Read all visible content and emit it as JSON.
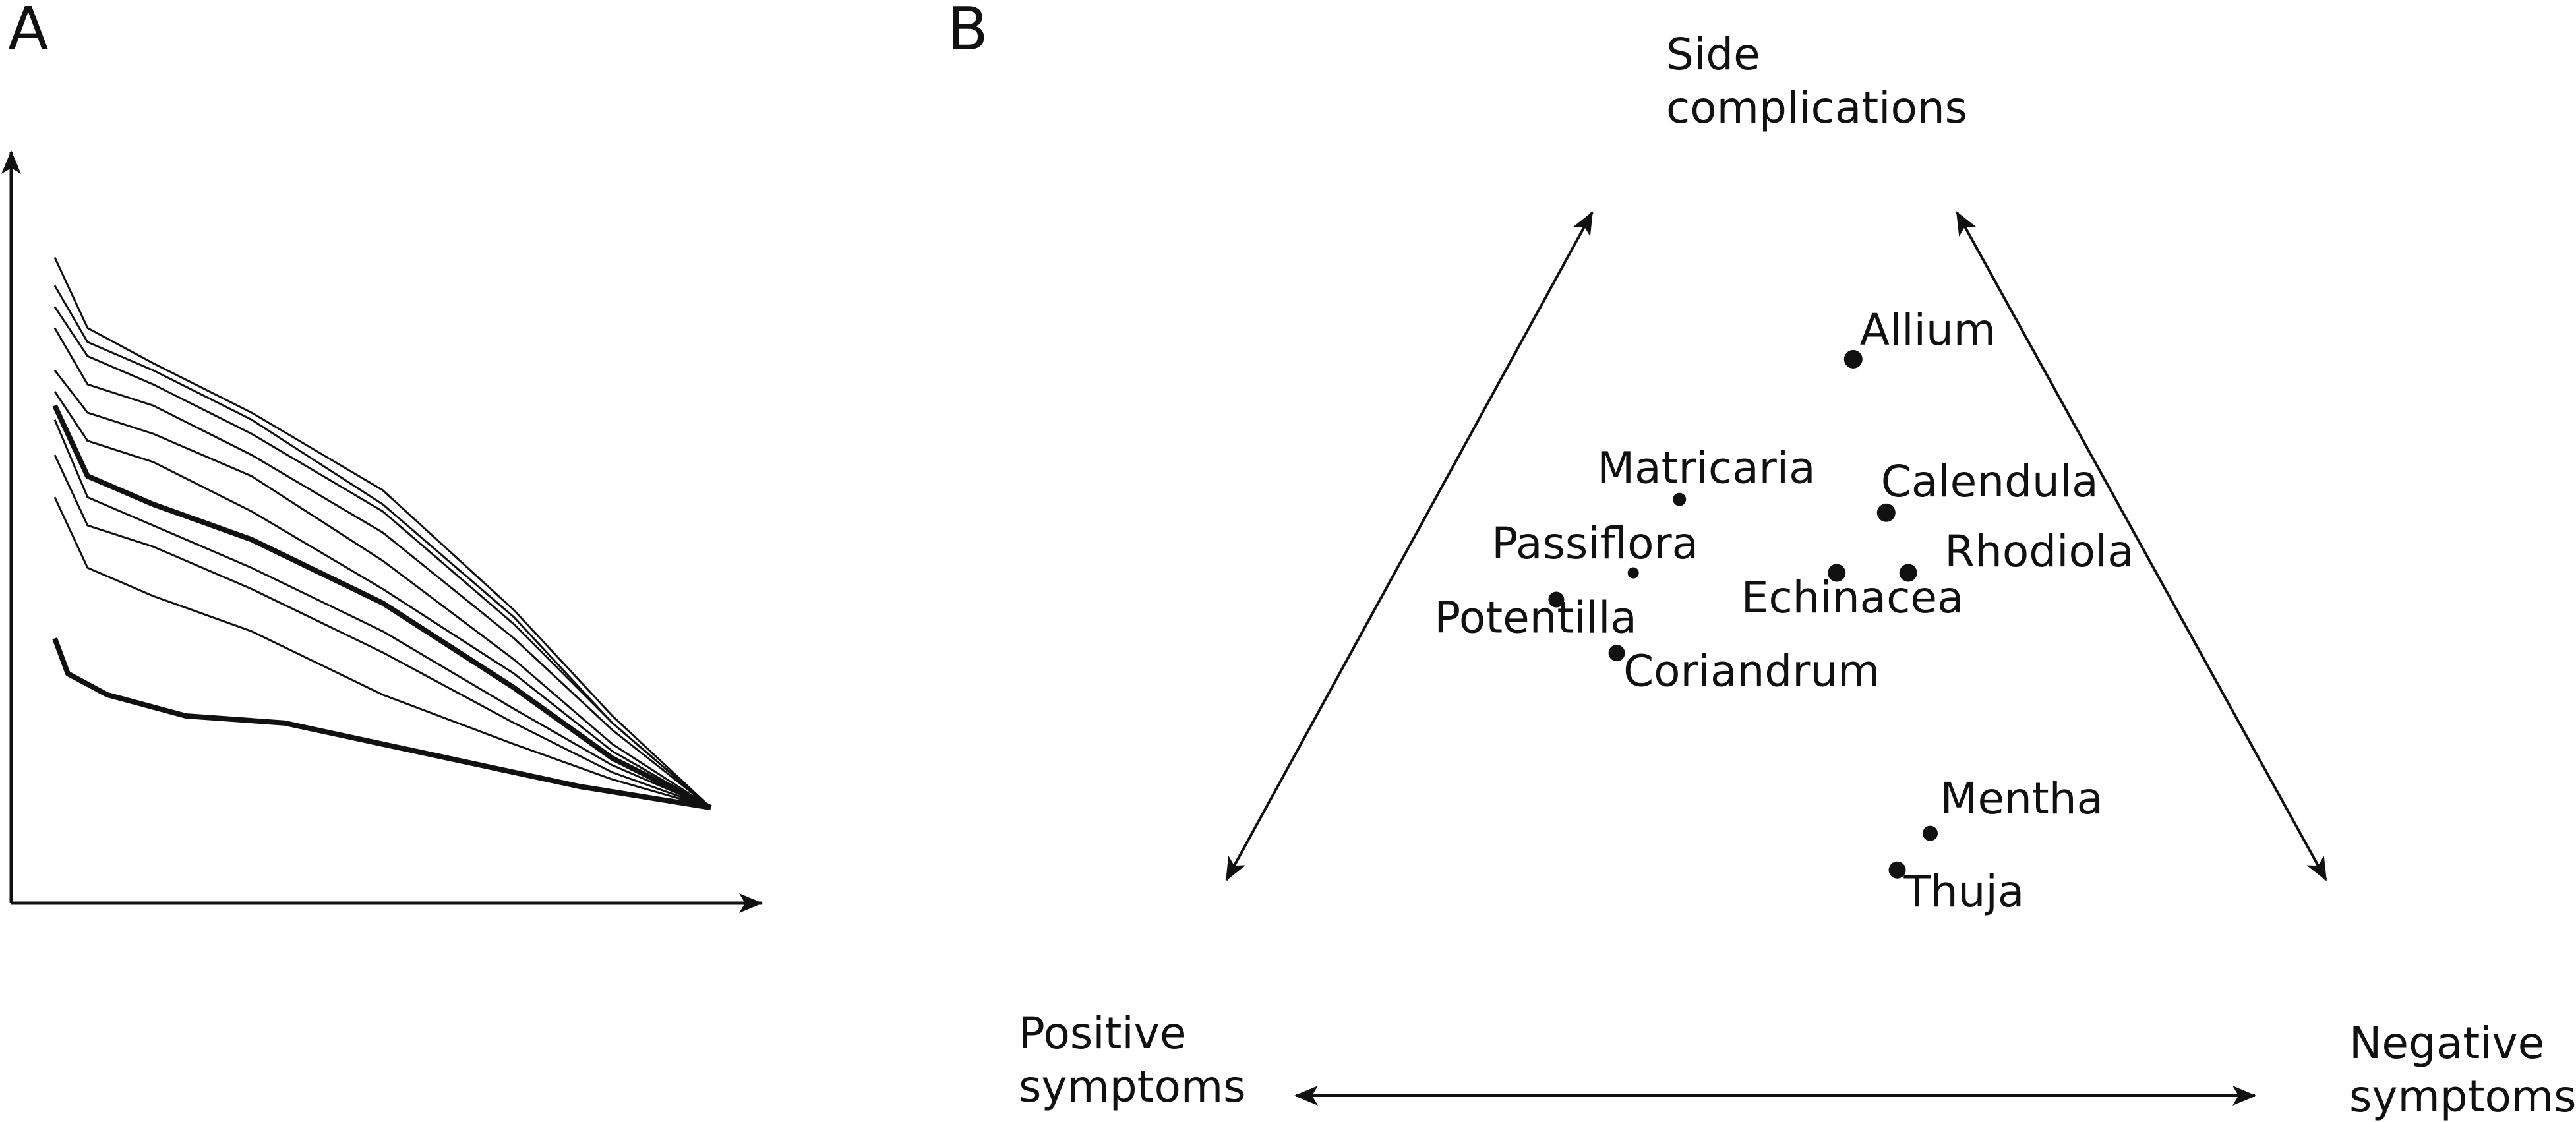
{
  "panels": {
    "a_label": "A",
    "b_label": "B"
  },
  "chart_data": [
    {
      "panel": "A",
      "type": "line",
      "title": "",
      "xlabel": "",
      "ylabel": "",
      "grid": false,
      "legend": "none",
      "colors": {
        "line": "#111111"
      },
      "series": [
        {
          "emphasis": "thin",
          "x": [
            0,
            0.05,
            0.15,
            0.3,
            0.5,
            0.7,
            0.85,
            1
          ],
          "y": [
            0.85,
            0.75,
            0.7,
            0.63,
            0.52,
            0.35,
            0.2,
            0.07
          ]
        },
        {
          "emphasis": "thin",
          "x": [
            0,
            0.05,
            0.15,
            0.3,
            0.5,
            0.7,
            0.85,
            1
          ],
          "y": [
            0.81,
            0.73,
            0.69,
            0.62,
            0.5,
            0.34,
            0.19,
            0.07
          ]
        },
        {
          "emphasis": "thin",
          "x": [
            0,
            0.05,
            0.15,
            0.3,
            0.5,
            0.7,
            0.85,
            1
          ],
          "y": [
            0.78,
            0.71,
            0.67,
            0.6,
            0.49,
            0.33,
            0.19,
            0.07
          ]
        },
        {
          "emphasis": "thin",
          "x": [
            0,
            0.05,
            0.15,
            0.3,
            0.5,
            0.7,
            0.85,
            1
          ],
          "y": [
            0.75,
            0.67,
            0.64,
            0.57,
            0.46,
            0.31,
            0.18,
            0.07
          ]
        },
        {
          "emphasis": "thin",
          "x": [
            0,
            0.05,
            0.15,
            0.3,
            0.5,
            0.7,
            0.85,
            1
          ],
          "y": [
            0.69,
            0.63,
            0.6,
            0.54,
            0.42,
            0.28,
            0.16,
            0.07
          ]
        },
        {
          "emphasis": "thin",
          "x": [
            0,
            0.05,
            0.15,
            0.3,
            0.5,
            0.7,
            0.85,
            1
          ],
          "y": [
            0.66,
            0.59,
            0.56,
            0.49,
            0.38,
            0.26,
            0.15,
            0.07
          ]
        },
        {
          "emphasis": "thick",
          "x": [
            0,
            0.05,
            0.15,
            0.3,
            0.5,
            0.7,
            0.85,
            1
          ],
          "y": [
            0.64,
            0.54,
            0.5,
            0.45,
            0.36,
            0.24,
            0.14,
            0.07
          ]
        },
        {
          "emphasis": "thin",
          "x": [
            0,
            0.05,
            0.15,
            0.3,
            0.5,
            0.7,
            0.85,
            1
          ],
          "y": [
            0.62,
            0.51,
            0.47,
            0.41,
            0.32,
            0.21,
            0.13,
            0.07
          ]
        },
        {
          "emphasis": "thin",
          "x": [
            0,
            0.05,
            0.15,
            0.3,
            0.5,
            0.7,
            0.85,
            1
          ],
          "y": [
            0.57,
            0.47,
            0.44,
            0.38,
            0.29,
            0.19,
            0.12,
            0.07
          ]
        },
        {
          "emphasis": "thin",
          "x": [
            0,
            0.05,
            0.15,
            0.3,
            0.5,
            0.7,
            0.85,
            1
          ],
          "y": [
            0.51,
            0.41,
            0.37,
            0.32,
            0.23,
            0.16,
            0.11,
            0.07
          ]
        },
        {
          "emphasis": "thick",
          "x": [
            0,
            0.02,
            0.08,
            0.2,
            0.35,
            0.5,
            0.65,
            0.8,
            1
          ],
          "y": [
            0.31,
            0.26,
            0.23,
            0.2,
            0.19,
            0.16,
            0.13,
            0.1,
            0.07
          ]
        }
      ]
    },
    {
      "panel": "B",
      "type": "scatter",
      "title": "",
      "grid": false,
      "legend": "none",
      "colors": {
        "point": "#111111"
      },
      "axes": {
        "top": "Side\ncomplications",
        "left": "Positive\nsymptoms",
        "right": "Negative\nsymptoms"
      },
      "points": [
        {
          "label": "Allium",
          "x": 0.57,
          "y": 0.78,
          "size": 1.0
        },
        {
          "label": "Matricaria",
          "x": 0.412,
          "y": 0.57,
          "size": 0.6
        },
        {
          "label": "Calendula",
          "x": 0.6,
          "y": 0.55,
          "size": 1.0
        },
        {
          "label": "Passiflora",
          "x": 0.37,
          "y": 0.46,
          "size": 0.45
        },
        {
          "label": "Echinacea",
          "x": 0.555,
          "y": 0.46,
          "size": 0.95
        },
        {
          "label": "Rhodiola",
          "x": 0.62,
          "y": 0.46,
          "size": 0.95
        },
        {
          "label": "Potentilla",
          "x": 0.3,
          "y": 0.42,
          "size": 0.8
        },
        {
          "label": "Coriandrum",
          "x": 0.355,
          "y": 0.34,
          "size": 0.85
        },
        {
          "label": "Mentha",
          "x": 0.64,
          "y": 0.07,
          "size": 0.75
        },
        {
          "label": "Thuja",
          "x": 0.61,
          "y": 0.015,
          "size": 0.9
        }
      ]
    }
  ]
}
